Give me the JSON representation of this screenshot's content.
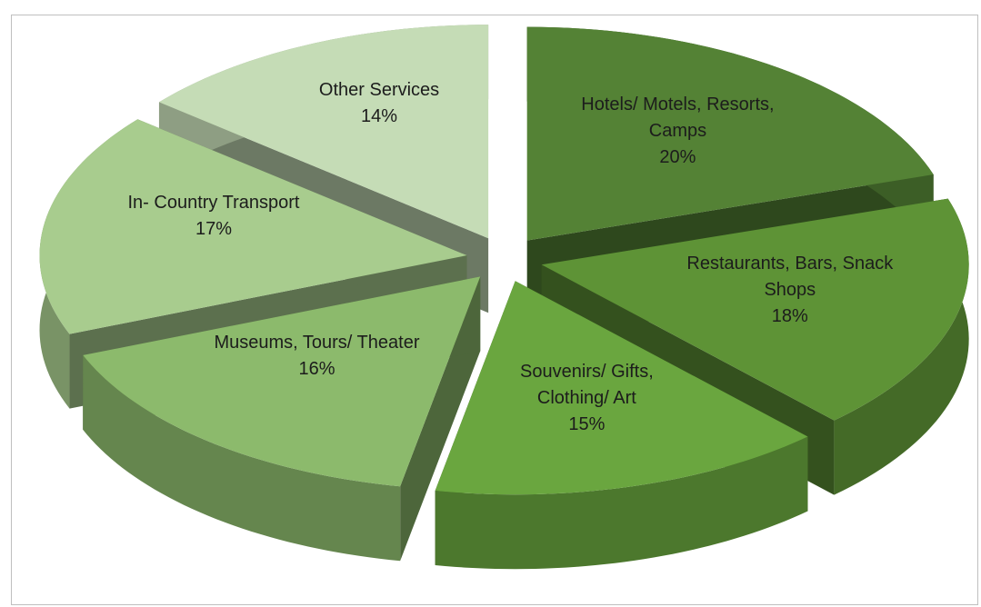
{
  "chart_data": {
    "type": "pie3d",
    "categories": [
      "Hotels/ Motels, Resorts, Camps",
      "Restaurants, Bars, Snack Shops",
      "Souvenirs/ Gifts, Clothing/ Art",
      "Museums, Tours/ Theater",
      "In- Country Transport",
      "Other Services"
    ],
    "values": [
      20,
      18,
      15,
      16,
      17,
      14
    ],
    "value_labels": [
      "20%",
      "18%",
      "15%",
      "16%",
      "17%",
      "14%"
    ],
    "colors": [
      "#548235",
      "#5e9336",
      "#6aa63f",
      "#8cba6c",
      "#a8cc8e",
      "#c5dcb6"
    ]
  }
}
